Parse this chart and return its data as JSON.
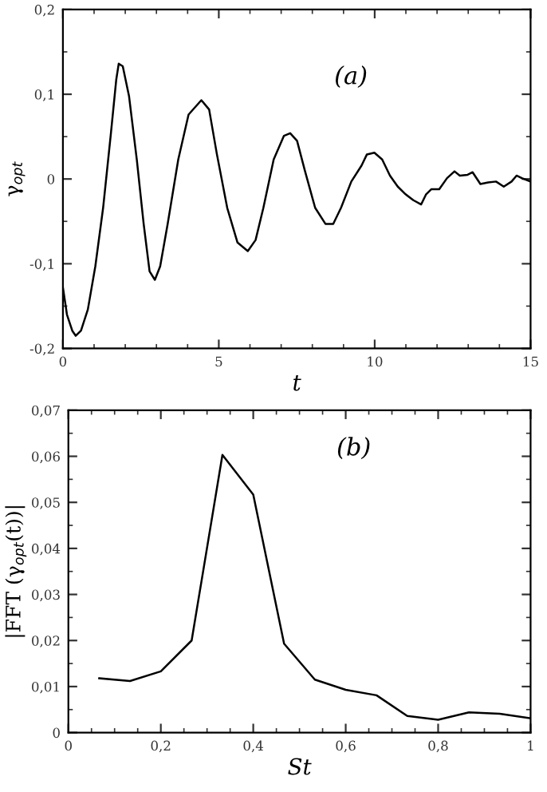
{
  "chart_data": [
    {
      "type": "line",
      "xlabel": "t",
      "ylabel": "γ$_{opt}$",
      "annotations": [
        "(a)"
      ],
      "color": "#000000",
      "grid": false,
      "x": [
        0,
        0.13,
        0.3,
        0.41,
        0.58,
        0.8,
        1.04,
        1.29,
        1.54,
        1.71,
        1.79,
        1.92,
        2.12,
        2.37,
        2.59,
        2.78,
        2.95,
        3.12,
        3.36,
        3.7,
        4.03,
        4.44,
        4.69,
        4.94,
        5.27,
        5.6,
        5.93,
        6.18,
        6.43,
        6.76,
        7.09,
        7.29,
        7.51,
        7.76,
        8.09,
        8.42,
        8.67,
        8.92,
        9.25,
        9.58,
        9.75,
        9.99,
        10.24,
        10.49,
        10.74,
        10.99,
        11.24,
        11.49,
        11.65,
        11.82,
        12.07,
        12.32,
        12.56,
        12.73,
        12.98,
        13.14,
        13.39,
        13.64,
        13.89,
        14.14,
        14.39,
        14.55,
        14.72,
        15.0
      ],
      "values": [
        -0.128,
        -0.16,
        -0.179,
        -0.185,
        -0.179,
        -0.154,
        -0.103,
        -0.034,
        0.054,
        0.117,
        0.136,
        0.133,
        0.098,
        0.023,
        -0.053,
        -0.109,
        -0.119,
        -0.103,
        -0.053,
        0.023,
        0.076,
        0.093,
        0.082,
        0.029,
        -0.034,
        -0.075,
        -0.085,
        -0.072,
        -0.034,
        0.023,
        0.051,
        0.054,
        0.045,
        0.01,
        -0.034,
        -0.053,
        -0.053,
        -0.034,
        -0.003,
        0.016,
        0.029,
        0.031,
        0.023,
        0.004,
        -0.009,
        -0.018,
        -0.025,
        -0.03,
        -0.018,
        -0.012,
        -0.012,
        0.001,
        0.009,
        0.004,
        0.005,
        0.008,
        -0.006,
        -0.004,
        -0.003,
        -0.009,
        -0.003,
        0.004,
        0.001,
        -0.003
      ],
      "xlim": [
        0,
        15
      ],
      "ylim": [
        -0.2,
        0.2
      ],
      "xticks": [
        0,
        {
          "value": 1,
          "label": null
        },
        {
          "value": 2,
          "label": null
        },
        {
          "value": 3,
          "label": null
        },
        {
          "value": 4,
          "label": null
        },
        5,
        {
          "value": 6,
          "label": null
        },
        {
          "value": 7,
          "label": null
        },
        {
          "value": 8,
          "label": null
        },
        {
          "value": 9,
          "label": null
        },
        10,
        {
          "value": 11,
          "label": null
        },
        {
          "value": 12,
          "label": null
        },
        {
          "value": 13,
          "label": null
        },
        {
          "value": 14,
          "label": null
        },
        15
      ],
      "yticks": [
        {
          "value": -0.2,
          "label": "-0,2"
        },
        {
          "value": -0.15,
          "label": null
        },
        {
          "value": -0.1,
          "label": "-0,1"
        },
        {
          "value": -0.05,
          "label": null
        },
        0,
        {
          "value": 0.05,
          "label": null
        },
        {
          "value": 0.1,
          "label": "0,1"
        },
        {
          "value": 0.15,
          "label": null
        },
        {
          "value": 0.2,
          "label": "0,2"
        }
      ]
    },
    {
      "type": "line",
      "xlabel": "St",
      "ylabel": "|FFT (γ$_{opt}$(t))|",
      "annotations": [
        "(b)"
      ],
      "color": "#000000",
      "grid": false,
      "x": [
        0.0667,
        0.1333,
        0.2,
        0.2667,
        0.3333,
        0.4,
        0.4667,
        0.5333,
        0.6,
        0.6667,
        0.7333,
        0.8,
        0.8667,
        0.9333,
        1.0
      ],
      "values": [
        0.0118,
        0.0112,
        0.0133,
        0.02,
        0.0603,
        0.0517,
        0.0193,
        0.0115,
        0.0093,
        0.0081,
        0.0036,
        0.0028,
        0.0044,
        0.0041,
        0.0031
      ],
      "xlim": [
        0,
        1
      ],
      "ylim": [
        0,
        0.07
      ],
      "xticks": [
        0,
        {
          "value": 0.05,
          "label": null
        },
        {
          "value": 0.1,
          "label": null
        },
        {
          "value": 0.15,
          "label": null
        },
        {
          "value": 0.2,
          "label": "0,2"
        },
        {
          "value": 0.25,
          "label": null
        },
        {
          "value": 0.3,
          "label": null
        },
        {
          "value": 0.35,
          "label": null
        },
        {
          "value": 0.4,
          "label": "0,4"
        },
        {
          "value": 0.45,
          "label": null
        },
        {
          "value": 0.5,
          "label": null
        },
        {
          "value": 0.55,
          "label": null
        },
        {
          "value": 0.6,
          "label": "0,6"
        },
        {
          "value": 0.65,
          "label": null
        },
        {
          "value": 0.7,
          "label": null
        },
        {
          "value": 0.75,
          "label": null
        },
        {
          "value": 0.8,
          "label": "0,8"
        },
        {
          "value": 0.85,
          "label": null
        },
        {
          "value": 0.9,
          "label": null
        },
        {
          "value": 0.95,
          "label": null
        },
        1
      ],
      "yticks": [
        0,
        {
          "value": 0.005,
          "label": null
        },
        {
          "value": 0.01,
          "label": "0,01"
        },
        {
          "value": 0.015,
          "label": null
        },
        {
          "value": 0.02,
          "label": "0,02"
        },
        {
          "value": 0.025,
          "label": null
        },
        {
          "value": 0.03,
          "label": "0,03"
        },
        {
          "value": 0.035,
          "label": null
        },
        {
          "value": 0.04,
          "label": "0,04"
        },
        {
          "value": 0.045,
          "label": null
        },
        {
          "value": 0.05,
          "label": "0,05"
        },
        {
          "value": 0.055,
          "label": null
        },
        {
          "value": 0.06,
          "label": "0,06"
        },
        {
          "value": 0.065,
          "label": null
        },
        {
          "value": 0.07,
          "label": "0,07"
        }
      ]
    }
  ]
}
